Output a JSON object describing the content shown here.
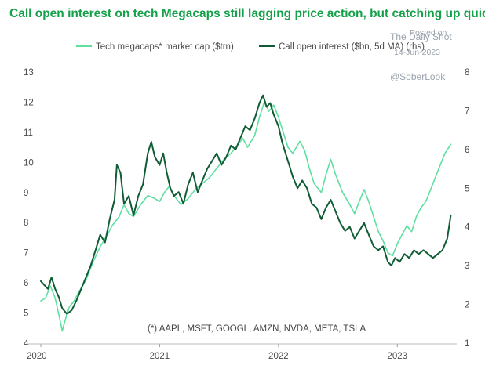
{
  "chart_data": {
    "type": "line",
    "title": "Call open interest on tech Megacaps still lagging price action, but catching up quickly",
    "footnote": "(*) AAPL, MSFT, GOOGL, AMZN, NVDA, META, TSLA",
    "x_ticks": [
      "2020",
      "2021",
      "2022",
      "2023"
    ],
    "x_range": [
      2020.0,
      2023.5
    ],
    "y_left": {
      "range": [
        4,
        13
      ],
      "ticks": [
        "4",
        "5",
        "6",
        "7",
        "8",
        "9",
        "10",
        "11",
        "12",
        "13"
      ]
    },
    "y_right": {
      "range": [
        1,
        8
      ],
      "ticks": [
        "1",
        "2",
        "3",
        "4",
        "5",
        "6",
        "7",
        "8"
      ]
    },
    "series": [
      {
        "name": "Tech megacaps* market cap ($trn)",
        "axis": "left",
        "color": "#5fe0a0",
        "points": [
          [
            2020.0,
            5.4
          ],
          [
            2020.04,
            5.5
          ],
          [
            2020.08,
            5.9
          ],
          [
            2020.12,
            5.5
          ],
          [
            2020.16,
            4.8
          ],
          [
            2020.18,
            4.4
          ],
          [
            2020.2,
            4.7
          ],
          [
            2020.24,
            5.2
          ],
          [
            2020.28,
            5.4
          ],
          [
            2020.32,
            5.7
          ],
          [
            2020.38,
            6.1
          ],
          [
            2020.44,
            6.7
          ],
          [
            2020.5,
            7.2
          ],
          [
            2020.56,
            7.6
          ],
          [
            2020.6,
            7.9
          ],
          [
            2020.66,
            8.2
          ],
          [
            2020.7,
            8.6
          ],
          [
            2020.74,
            8.3
          ],
          [
            2020.78,
            8.2
          ],
          [
            2020.84,
            8.6
          ],
          [
            2020.9,
            8.9
          ],
          [
            2020.96,
            8.8
          ],
          [
            2021.0,
            8.7
          ],
          [
            2021.04,
            9.0
          ],
          [
            2021.08,
            9.2
          ],
          [
            2021.12,
            8.9
          ],
          [
            2021.18,
            8.6
          ],
          [
            2021.24,
            8.8
          ],
          [
            2021.3,
            9.1
          ],
          [
            2021.36,
            9.3
          ],
          [
            2021.42,
            9.5
          ],
          [
            2021.48,
            9.8
          ],
          [
            2021.54,
            10.1
          ],
          [
            2021.6,
            10.3
          ],
          [
            2021.66,
            10.6
          ],
          [
            2021.7,
            10.8
          ],
          [
            2021.74,
            10.5
          ],
          [
            2021.8,
            10.9
          ],
          [
            2021.84,
            11.5
          ],
          [
            2021.88,
            12.0
          ],
          [
            2021.92,
            11.7
          ],
          [
            2021.96,
            11.9
          ],
          [
            2022.0,
            11.5
          ],
          [
            2022.04,
            11.0
          ],
          [
            2022.08,
            10.5
          ],
          [
            2022.12,
            10.3
          ],
          [
            2022.18,
            10.7
          ],
          [
            2022.22,
            10.4
          ],
          [
            2022.26,
            9.8
          ],
          [
            2022.3,
            9.3
          ],
          [
            2022.36,
            9.0
          ],
          [
            2022.4,
            9.6
          ],
          [
            2022.44,
            10.1
          ],
          [
            2022.48,
            9.6
          ],
          [
            2022.54,
            9.0
          ],
          [
            2022.6,
            8.6
          ],
          [
            2022.64,
            8.3
          ],
          [
            2022.68,
            8.7
          ],
          [
            2022.72,
            9.1
          ],
          [
            2022.76,
            8.7
          ],
          [
            2022.8,
            8.2
          ],
          [
            2022.84,
            7.7
          ],
          [
            2022.88,
            7.4
          ],
          [
            2022.92,
            7.0
          ],
          [
            2022.96,
            6.9
          ],
          [
            2023.0,
            7.3
          ],
          [
            2023.04,
            7.6
          ],
          [
            2023.08,
            7.9
          ],
          [
            2023.12,
            7.7
          ],
          [
            2023.16,
            8.2
          ],
          [
            2023.2,
            8.5
          ],
          [
            2023.24,
            8.7
          ],
          [
            2023.28,
            9.1
          ],
          [
            2023.32,
            9.5
          ],
          [
            2023.36,
            9.9
          ],
          [
            2023.4,
            10.3
          ],
          [
            2023.45,
            10.6
          ]
        ]
      },
      {
        "name": "Call open interest ($bn, 5d MA) (rhs)",
        "axis": "right",
        "color": "#0f5c35",
        "points": [
          [
            2020.0,
            2.6
          ],
          [
            2020.03,
            2.5
          ],
          [
            2020.06,
            2.4
          ],
          [
            2020.09,
            2.7
          ],
          [
            2020.12,
            2.4
          ],
          [
            2020.15,
            2.2
          ],
          [
            2020.18,
            1.9
          ],
          [
            2020.22,
            1.75
          ],
          [
            2020.26,
            1.85
          ],
          [
            2020.3,
            2.1
          ],
          [
            2020.34,
            2.4
          ],
          [
            2020.38,
            2.7
          ],
          [
            2020.42,
            3.0
          ],
          [
            2020.46,
            3.4
          ],
          [
            2020.5,
            3.8
          ],
          [
            2020.54,
            3.6
          ],
          [
            2020.58,
            4.2
          ],
          [
            2020.62,
            4.7
          ],
          [
            2020.64,
            5.6
          ],
          [
            2020.67,
            5.4
          ],
          [
            2020.7,
            4.6
          ],
          [
            2020.74,
            4.8
          ],
          [
            2020.78,
            4.3
          ],
          [
            2020.82,
            4.8
          ],
          [
            2020.86,
            5.1
          ],
          [
            2020.9,
            5.9
          ],
          [
            2020.93,
            6.2
          ],
          [
            2020.96,
            5.8
          ],
          [
            2021.0,
            5.6
          ],
          [
            2021.03,
            5.9
          ],
          [
            2021.06,
            5.4
          ],
          [
            2021.09,
            5.0
          ],
          [
            2021.12,
            4.8
          ],
          [
            2021.16,
            4.9
          ],
          [
            2021.2,
            4.6
          ],
          [
            2021.24,
            5.1
          ],
          [
            2021.28,
            5.4
          ],
          [
            2021.32,
            4.9
          ],
          [
            2021.36,
            5.2
          ],
          [
            2021.4,
            5.5
          ],
          [
            2021.44,
            5.7
          ],
          [
            2021.48,
            5.9
          ],
          [
            2021.52,
            5.6
          ],
          [
            2021.56,
            5.8
          ],
          [
            2021.6,
            6.1
          ],
          [
            2021.64,
            6.0
          ],
          [
            2021.68,
            6.3
          ],
          [
            2021.72,
            6.6
          ],
          [
            2021.76,
            6.5
          ],
          [
            2021.8,
            6.8
          ],
          [
            2021.84,
            7.2
          ],
          [
            2021.87,
            7.4
          ],
          [
            2021.9,
            7.1
          ],
          [
            2021.93,
            7.2
          ],
          [
            2021.96,
            6.9
          ],
          [
            2022.0,
            6.6
          ],
          [
            2022.03,
            6.2
          ],
          [
            2022.06,
            5.9
          ],
          [
            2022.09,
            5.6
          ],
          [
            2022.12,
            5.3
          ],
          [
            2022.16,
            5.0
          ],
          [
            2022.2,
            5.2
          ],
          [
            2022.24,
            5.0
          ],
          [
            2022.28,
            4.6
          ],
          [
            2022.32,
            4.5
          ],
          [
            2022.36,
            4.2
          ],
          [
            2022.4,
            4.5
          ],
          [
            2022.44,
            4.7
          ],
          [
            2022.48,
            4.4
          ],
          [
            2022.52,
            4.1
          ],
          [
            2022.56,
            3.9
          ],
          [
            2022.6,
            4.0
          ],
          [
            2022.64,
            3.7
          ],
          [
            2022.68,
            3.9
          ],
          [
            2022.72,
            4.1
          ],
          [
            2022.76,
            3.8
          ],
          [
            2022.8,
            3.5
          ],
          [
            2022.84,
            3.4
          ],
          [
            2022.88,
            3.5
          ],
          [
            2022.92,
            3.1
          ],
          [
            2022.95,
            3.0
          ],
          [
            2022.98,
            3.2
          ],
          [
            2023.02,
            3.1
          ],
          [
            2023.06,
            3.3
          ],
          [
            2023.1,
            3.2
          ],
          [
            2023.14,
            3.4
          ],
          [
            2023.18,
            3.3
          ],
          [
            2023.22,
            3.4
          ],
          [
            2023.26,
            3.3
          ],
          [
            2023.3,
            3.2
          ],
          [
            2023.34,
            3.3
          ],
          [
            2023.38,
            3.4
          ],
          [
            2023.42,
            3.7
          ],
          [
            2023.45,
            4.3
          ]
        ]
      }
    ]
  },
  "watermark": {
    "posted": "Posted on",
    "brand": "The Daily Shot",
    "date": "14-Jun-2023",
    "handle": "@SoberLook"
  }
}
